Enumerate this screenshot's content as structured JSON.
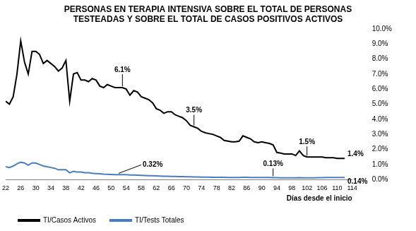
{
  "chart_data": {
    "type": "line",
    "title": [
      "PERSONAS EN TERAPIA INTENSIVA SOBRE EL TOTAL DE PERSONAS",
      "TESTEADAS Y SOBRE EL TOTAL DE CASOS POSITIVOS ACTIVOS"
    ],
    "x_label": "Días desde el inicio",
    "x": [
      22,
      23,
      24,
      25,
      26,
      27,
      28,
      29,
      30,
      31,
      32,
      33,
      34,
      35,
      36,
      37,
      38,
      39,
      40,
      41,
      42,
      43,
      44,
      45,
      46,
      47,
      48,
      49,
      50,
      51,
      52,
      53,
      54,
      55,
      56,
      57,
      58,
      59,
      60,
      61,
      62,
      63,
      64,
      65,
      66,
      67,
      68,
      69,
      70,
      71,
      72,
      73,
      74,
      75,
      76,
      77,
      78,
      79,
      80,
      81,
      82,
      83,
      84,
      85,
      86,
      87,
      88,
      89,
      90,
      91,
      92,
      93,
      94,
      95,
      96,
      97,
      98,
      99,
      100,
      101,
      102,
      103,
      104,
      105,
      106,
      107,
      108,
      109,
      110,
      111,
      112
    ],
    "series": [
      {
        "name": "TI/Casos Activos",
        "color": "#000000",
        "values": [
          5.2,
          5.0,
          5.5,
          7.0,
          9.2,
          7.8,
          7.0,
          8.5,
          8.5,
          8.3,
          7.7,
          7.9,
          7.7,
          7.5,
          7.2,
          7.4,
          7.9,
          5.2,
          7.0,
          7.1,
          6.6,
          6.6,
          6.5,
          6.7,
          6.6,
          6.2,
          6.1,
          6.3,
          6.2,
          6.1,
          6.1,
          6.1,
          6.0,
          5.6,
          5.9,
          5.8,
          5.5,
          5.4,
          5.3,
          5.1,
          4.7,
          4.6,
          4.4,
          4.5,
          4.5,
          4.3,
          4.2,
          4.1,
          3.9,
          3.6,
          3.5,
          3.4,
          3.2,
          3.1,
          3.05,
          3.0,
          2.9,
          2.8,
          2.6,
          2.55,
          2.5,
          2.5,
          2.55,
          2.9,
          2.8,
          2.7,
          2.5,
          2.45,
          2.5,
          2.45,
          2.4,
          2.3,
          1.8,
          1.75,
          1.7,
          1.7,
          1.7,
          1.6,
          1.9,
          1.6,
          1.5,
          1.5,
          1.5,
          1.5,
          1.5,
          1.45,
          1.45,
          1.45,
          1.4,
          1.4,
          1.4
        ]
      },
      {
        "name": "TI/Tests Totales",
        "color": "#4a7ebb",
        "values": [
          0.85,
          0.8,
          0.9,
          1.05,
          1.15,
          1.1,
          0.95,
          1.1,
          1.1,
          1.0,
          0.9,
          0.85,
          0.8,
          0.75,
          0.65,
          0.65,
          0.65,
          0.45,
          0.55,
          0.5,
          0.5,
          0.45,
          0.45,
          0.42,
          0.4,
          0.38,
          0.36,
          0.35,
          0.34,
          0.33,
          0.32,
          0.32,
          0.32,
          0.3,
          0.3,
          0.29,
          0.28,
          0.27,
          0.26,
          0.25,
          0.24,
          0.23,
          0.22,
          0.22,
          0.21,
          0.21,
          0.2,
          0.2,
          0.19,
          0.18,
          0.17,
          0.17,
          0.16,
          0.16,
          0.16,
          0.15,
          0.15,
          0.15,
          0.15,
          0.14,
          0.14,
          0.14,
          0.14,
          0.15,
          0.15,
          0.14,
          0.14,
          0.14,
          0.14,
          0.14,
          0.14,
          0.13,
          0.13,
          0.12,
          0.12,
          0.12,
          0.12,
          0.12,
          0.13,
          0.12,
          0.12,
          0.12,
          0.12,
          0.13,
          0.13,
          0.14,
          0.14,
          0.14,
          0.14,
          0.14,
          0.14
        ]
      }
    ],
    "annotations": [
      {
        "text": "6.1%",
        "x": 53,
        "y": 6.1
      },
      {
        "text": "3.5%",
        "x": 72,
        "y": 3.5
      },
      {
        "text": "1.5%",
        "x": 102,
        "y": 1.5
      },
      {
        "text": "1.4%",
        "x": 112,
        "y": 1.4
      },
      {
        "text": "0.32%",
        "x": 52,
        "y": 0.32
      },
      {
        "text": "0.13%",
        "x": 93,
        "y": 0.13
      },
      {
        "text": "0.14%",
        "x": 112,
        "y": 0.14
      }
    ],
    "xlim": [
      22,
      114
    ],
    "xticks": [
      22,
      26,
      30,
      34,
      38,
      42,
      46,
      50,
      54,
      58,
      62,
      66,
      70,
      74,
      78,
      82,
      86,
      90,
      94,
      98,
      102,
      106,
      110,
      114
    ],
    "ylim": [
      0,
      10
    ],
    "yticks": [
      {
        "value": 0,
        "label": "0.0%"
      },
      {
        "value": 1,
        "label": "1.0%"
      },
      {
        "value": 2,
        "label": "2.0%"
      },
      {
        "value": 3,
        "label": "3.0%"
      },
      {
        "value": 4,
        "label": "4.0%"
      },
      {
        "value": 5,
        "label": "5.0%"
      },
      {
        "value": 6,
        "label": "6.0%"
      },
      {
        "value": 7,
        "label": "7.0%"
      },
      {
        "value": 8,
        "label": "8.0%"
      },
      {
        "value": 9,
        "label": "9.0%"
      },
      {
        "value": 10,
        "label": "10.0%"
      }
    ],
    "grid": false,
    "legend": "bottom"
  }
}
